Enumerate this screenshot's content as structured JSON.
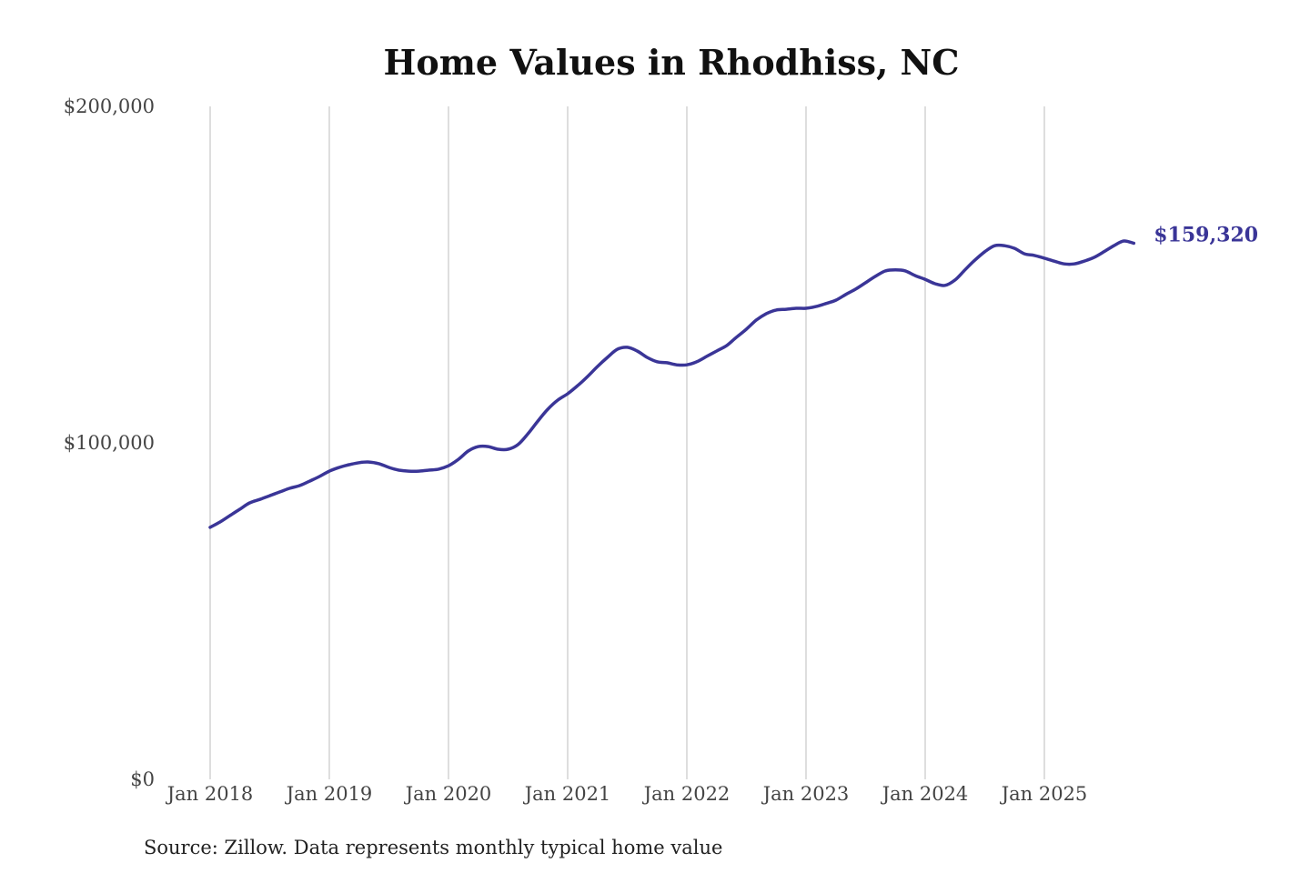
{
  "chart_data": {
    "type": "line",
    "title": "Home Values in Rhodhiss, NC",
    "source": "Source: Zillow. Data represents monthly typical home value",
    "xlabel": "",
    "ylabel": "",
    "ylim": [
      0,
      200000
    ],
    "y_ticks": [
      0,
      100000,
      200000
    ],
    "y_tick_labels": [
      "$0",
      "$100,000",
      "$200,000"
    ],
    "x_start": "2018-01",
    "x_end": "2025-10",
    "x_tick_labels": [
      "Jan 2018",
      "Jan 2019",
      "Jan 2020",
      "Jan 2021",
      "Jan 2022",
      "Jan 2023",
      "Jan 2024",
      "Jan 2025"
    ],
    "grid": "vertical at year ticks",
    "line_color": "#3a3597",
    "grid_color": "#c8c8c8",
    "end_label": "$159,320",
    "series": [
      {
        "values": [
          74900,
          76500,
          78400,
          80300,
          82200,
          83200,
          84300,
          85400,
          86500,
          87300,
          88600,
          90000,
          91600,
          92700,
          93500,
          94100,
          94300,
          93800,
          92700,
          91900,
          91600,
          91600,
          91900,
          92200,
          93200,
          95100,
          97600,
          98900,
          98900,
          98100,
          98100,
          99500,
          102700,
          106500,
          110000,
          112700,
          114600,
          117000,
          119700,
          122700,
          125400,
          127800,
          128400,
          127300,
          125400,
          124100,
          123800,
          123200,
          123200,
          124100,
          125700,
          127300,
          128900,
          131400,
          133800,
          136500,
          138400,
          139500,
          139700,
          140000,
          140000,
          140500,
          141400,
          142400,
          144100,
          145700,
          147600,
          149500,
          151100,
          151400,
          151100,
          149700,
          148600,
          147300,
          146800,
          148400,
          151400,
          154300,
          156800,
          158600,
          158600,
          157800,
          156200,
          155700,
          154900,
          154000,
          153200,
          153200,
          154000,
          155100,
          156800,
          158600,
          160000,
          159320
        ]
      }
    ]
  }
}
